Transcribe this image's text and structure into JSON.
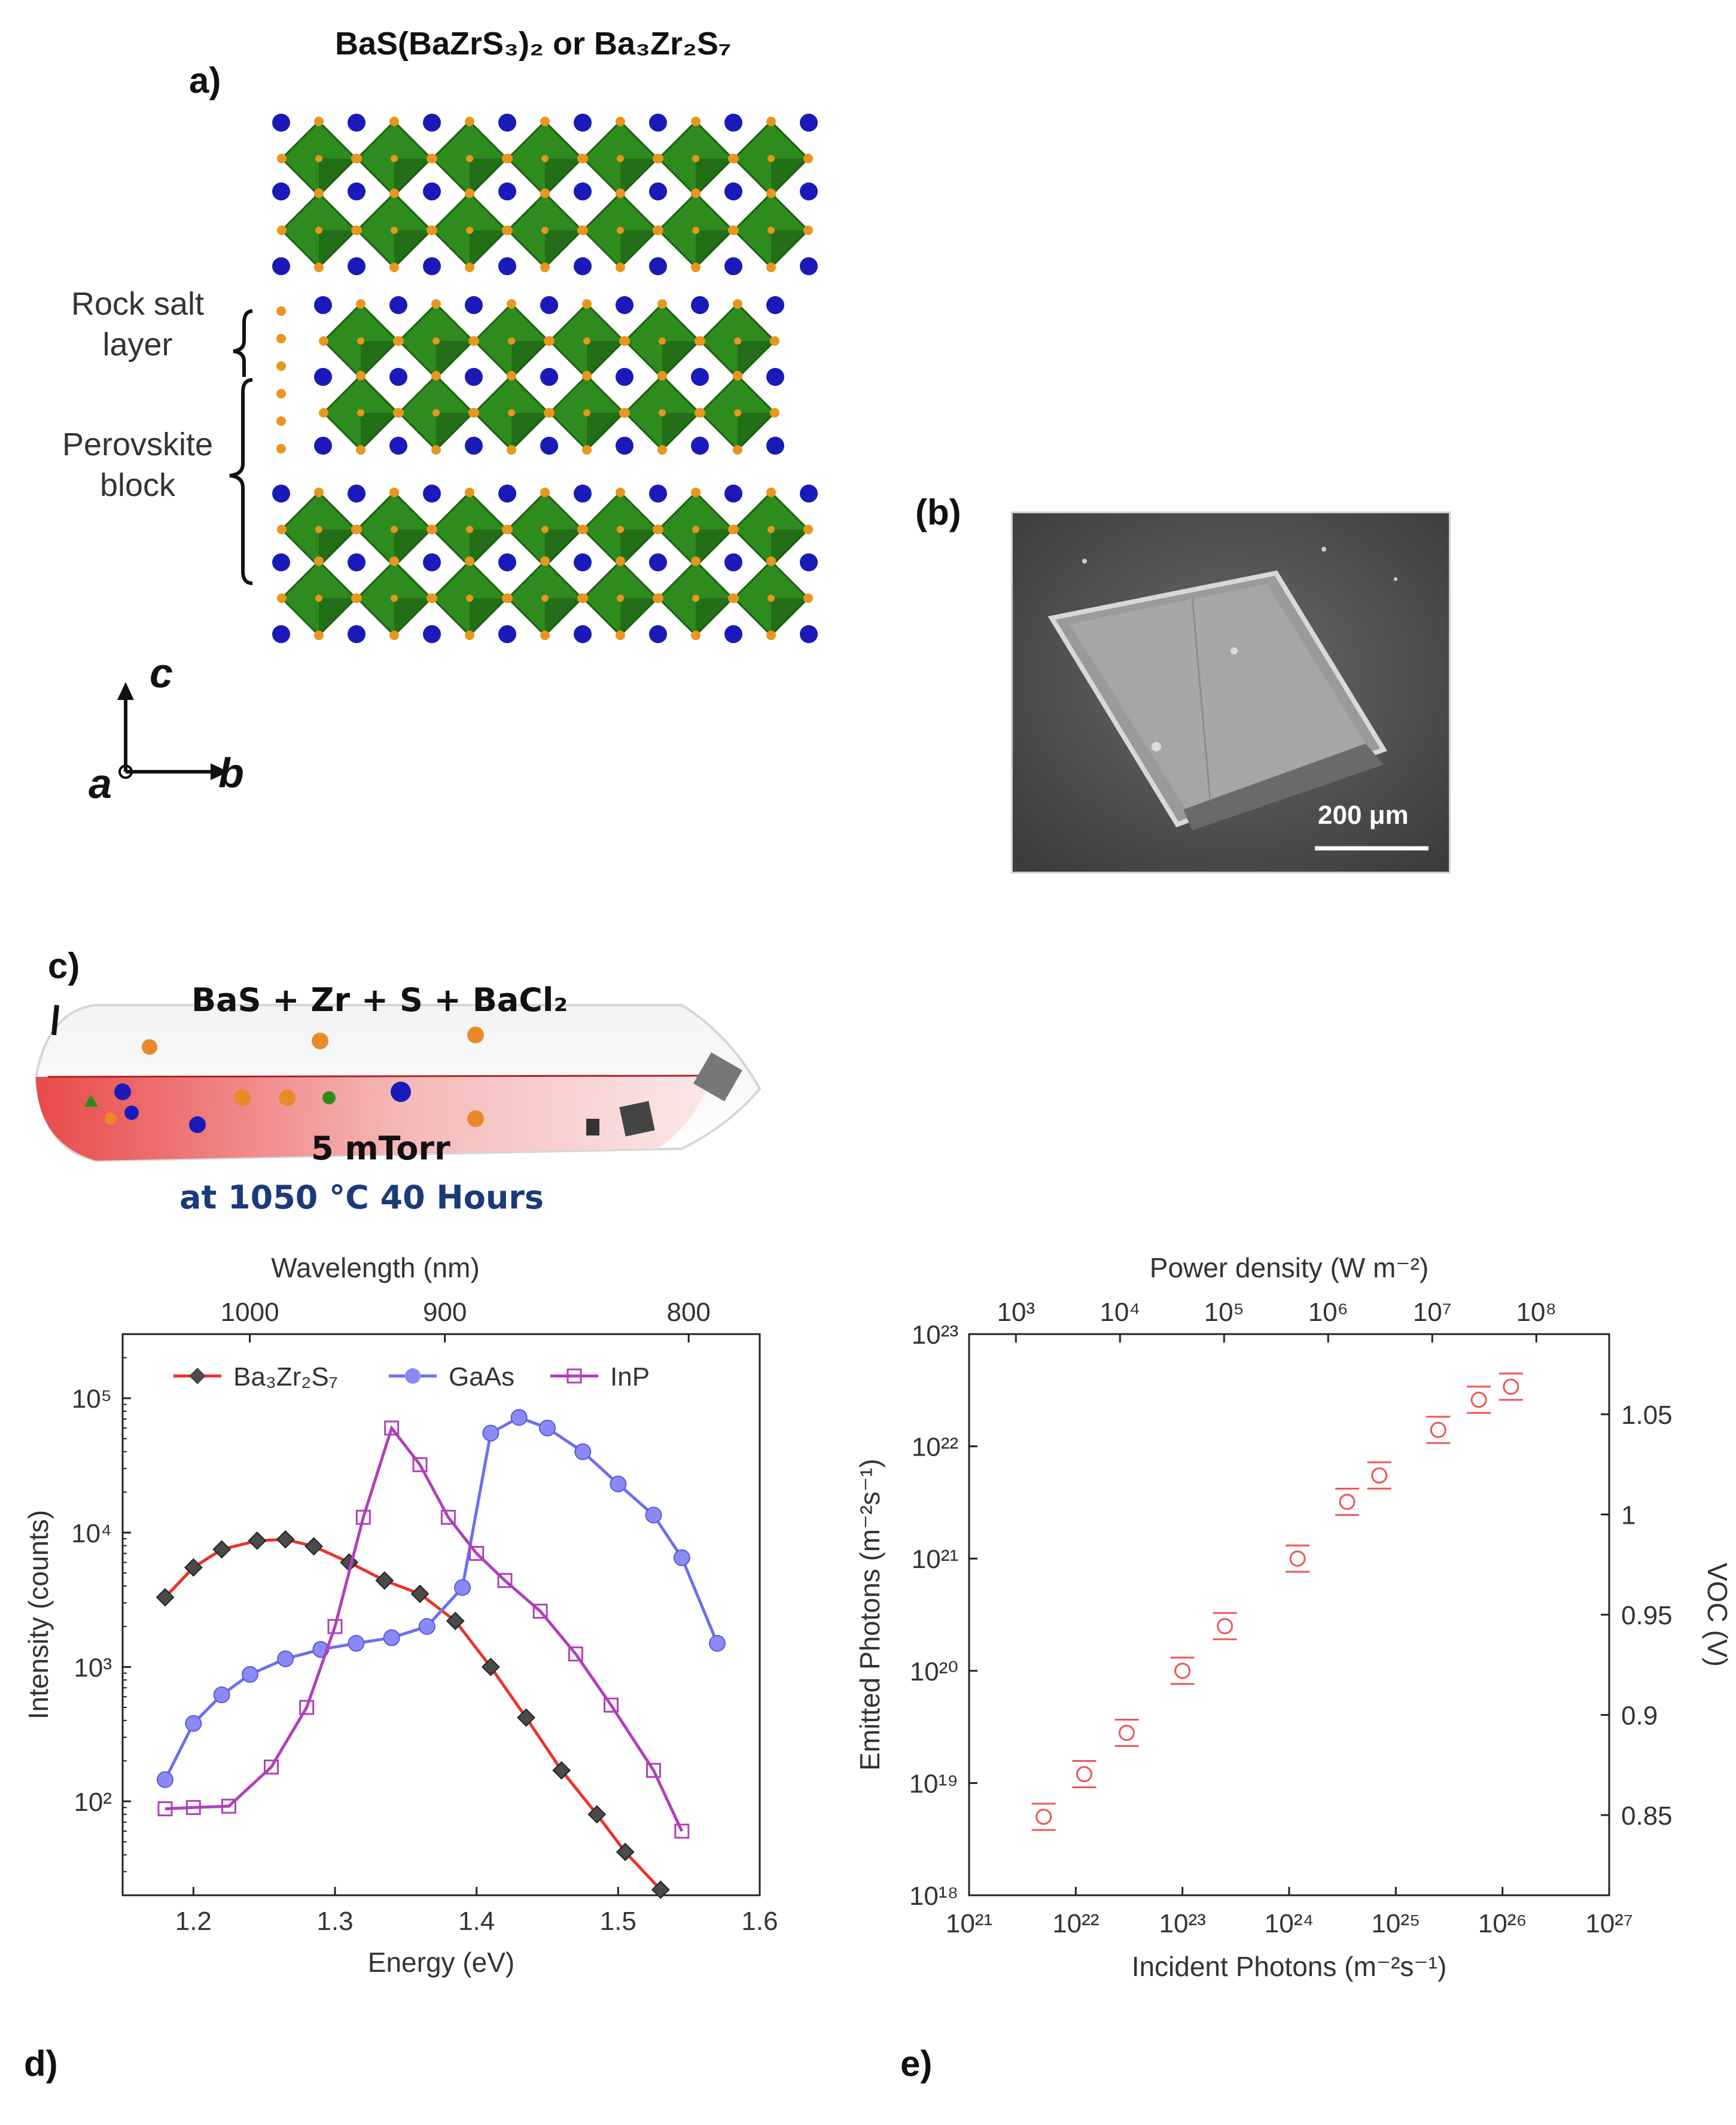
{
  "panel_a": {
    "label": "a)",
    "title": "BaS(BaZrS₃)₂ or Ba₃Zr₂S₇",
    "rock_salt_label": "Rock salt\nlayer",
    "perovskite_label": "Perovskite\nblock",
    "axis_c": "c",
    "axis_a": "a",
    "axis_b": "b",
    "colors": {
      "octahedron": "#2e8b1e",
      "octahedron_dark": "#1d5e12",
      "ba_atom": "#1a1ab8",
      "s_atom": "#e8961e"
    }
  },
  "panel_b": {
    "label": "(b)",
    "scale_bar": "200 μm"
  },
  "panel_c": {
    "label": "c)",
    "reaction": "BaS + Zr + S + BaCl₂",
    "pressure": "5 mTorr",
    "condition": "at 1050 °C 40 Hours"
  },
  "panel_d_label": "d)",
  "panel_e_label": "e)",
  "chart_data": [
    {
      "id": "d",
      "type": "line",
      "title": "",
      "xlabel": "Energy (eV)",
      "ylabel": "Intensity (counts)",
      "top_xlabel": "Wavelength (nm)",
      "xlim": [
        1.15,
        1.6
      ],
      "ylim": [
        20,
        300000
      ],
      "yscale": "log",
      "x_ticks": [
        "1.2",
        "1.3",
        "1.4",
        "1.5",
        "1.6"
      ],
      "x_tick_values": [
        1.2,
        1.3,
        1.4,
        1.5,
        1.6
      ],
      "y_ticks": [
        "10²",
        "10³",
        "10⁴",
        "10⁵"
      ],
      "y_tick_values": [
        100,
        1000,
        10000,
        100000
      ],
      "top_ticks": [
        "1000",
        "900",
        "800"
      ],
      "top_tick_values": [
        1000,
        900,
        800
      ],
      "legend": [
        "Ba₃Zr₂S₇",
        "GaAs",
        "InP"
      ],
      "legend_position": "top",
      "series": [
        {
          "name": "Ba₃Zr₂S₇",
          "color": "#e8332a",
          "marker_color": "#4a4a4a",
          "marker": "diamond",
          "x": [
            1.18,
            1.2,
            1.22,
            1.245,
            1.265,
            1.285,
            1.31,
            1.335,
            1.36,
            1.385,
            1.41,
            1.435,
            1.46,
            1.485,
            1.505,
            1.53
          ],
          "y": [
            3300,
            5500,
            7500,
            8700,
            8900,
            7900,
            6000,
            4400,
            3500,
            2200,
            1000,
            420,
            170,
            80,
            42,
            22
          ]
        },
        {
          "name": "GaAs",
          "color": "#6e6ef0",
          "marker_color": "#8a8af5",
          "marker": "circle",
          "x": [
            1.18,
            1.2,
            1.22,
            1.24,
            1.265,
            1.29,
            1.315,
            1.34,
            1.365,
            1.39,
            1.41,
            1.43,
            1.45,
            1.475,
            1.5,
            1.525,
            1.545,
            1.57
          ],
          "y": [
            145,
            380,
            620,
            880,
            1150,
            1350,
            1500,
            1650,
            2000,
            3900,
            55000,
            72000,
            60000,
            40000,
            23000,
            13500,
            6500,
            1500
          ]
        },
        {
          "name": "InP",
          "color": "#b040b8",
          "marker_color": "#b040b8",
          "marker": "square",
          "x": [
            1.18,
            1.2,
            1.225,
            1.255,
            1.28,
            1.3,
            1.32,
            1.34,
            1.36,
            1.38,
            1.4,
            1.42,
            1.445,
            1.47,
            1.495,
            1.525,
            1.545
          ],
          "y": [
            88,
            90,
            92,
            180,
            500,
            2000,
            13000,
            60000,
            32000,
            13000,
            7000,
            4400,
            2600,
            1250,
            520,
            170,
            60
          ]
        }
      ]
    },
    {
      "id": "e",
      "type": "scatter",
      "title": "",
      "xlabel": "Incident Photons (m⁻²s⁻¹)",
      "ylabel": "Emitted Photons (m⁻²s⁻¹)",
      "right_ylabel": "VOC (V)",
      "top_xlabel": "Power density (W m⁻²)",
      "xscale": "log",
      "yscale": "log",
      "xlim": [
        1e+21,
        1e+27
      ],
      "ylim": [
        1e+18,
        1e+23
      ],
      "x_ticks": [
        "10²¹",
        "10²²",
        "10²³",
        "10²⁴",
        "10²⁵",
        "10²⁶",
        "10²⁷"
      ],
      "x_tick_exp": [
        21,
        22,
        23,
        24,
        25,
        26,
        27
      ],
      "y_ticks": [
        "10¹⁸",
        "10¹⁹",
        "10²⁰",
        "10²¹",
        "10²²",
        "10²³"
      ],
      "y_tick_exp": [
        18,
        19,
        20,
        21,
        22,
        23
      ],
      "top_ticks": [
        "10³",
        "10⁴",
        "10⁵",
        "10⁶",
        "10⁷",
        "10⁸"
      ],
      "top_tick_exp": [
        3,
        4,
        5,
        6,
        7,
        8
      ],
      "right_ticks": [
        "0.85",
        "0.9",
        "0.95",
        "1",
        "1.05"
      ],
      "right_tick_values": [
        0.85,
        0.9,
        0.95,
        1.0,
        1.05
      ],
      "right_ylim": [
        0.81,
        1.09
      ],
      "series": [
        {
          "name": "Emitted Photons",
          "color": "#ee5555",
          "x": [
            5e+21,
            1.2e+22,
            3e+22,
            1e+23,
            2.5e+23,
            1.2e+24,
            3.5e+24,
            7e+24,
            2.5e+25,
            6e+25,
            1.2e+26
          ],
          "y": [
            5e+18,
            1.2e+19,
            2.8e+19,
            1e+20,
            2.5e+20,
            1e+21,
            3.2e+21,
            5.5e+21,
            1.4e+22,
            2.6e+22,
            3.4e+22
          ]
        }
      ]
    }
  ]
}
